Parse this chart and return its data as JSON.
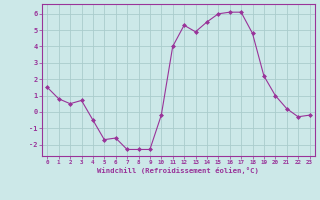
{
  "x": [
    0,
    1,
    2,
    3,
    4,
    5,
    6,
    7,
    8,
    9,
    10,
    11,
    12,
    13,
    14,
    15,
    16,
    17,
    18,
    19,
    20,
    21,
    22,
    23
  ],
  "y": [
    1.5,
    0.8,
    0.5,
    0.7,
    -0.5,
    -1.7,
    -1.6,
    -2.3,
    -2.3,
    -2.3,
    -0.2,
    4.0,
    5.3,
    4.9,
    5.5,
    6.0,
    6.1,
    6.1,
    4.8,
    2.2,
    1.0,
    0.2,
    -0.3,
    -0.2
  ],
  "line_color": "#993399",
  "marker": "D",
  "marker_size": 2.0,
  "bg_color": "#cce8e8",
  "grid_color": "#aacccc",
  "xlabel": "Windchill (Refroidissement éolien,°C)",
  "xlabel_color": "#993399",
  "ylabel_ticks": [
    -2,
    -1,
    0,
    1,
    2,
    3,
    4,
    5,
    6
  ],
  "xtick_labels": [
    "0",
    "1",
    "2",
    "3",
    "4",
    "5",
    "6",
    "7",
    "8",
    "9",
    "10",
    "11",
    "12",
    "13",
    "14",
    "15",
    "16",
    "17",
    "18",
    "19",
    "20",
    "21",
    "22",
    "23"
  ],
  "ylim": [
    -2.7,
    6.6
  ],
  "xlim": [
    -0.5,
    23.5
  ],
  "tick_color": "#993399",
  "tick_label_color": "#993399",
  "spine_color": "#993399"
}
